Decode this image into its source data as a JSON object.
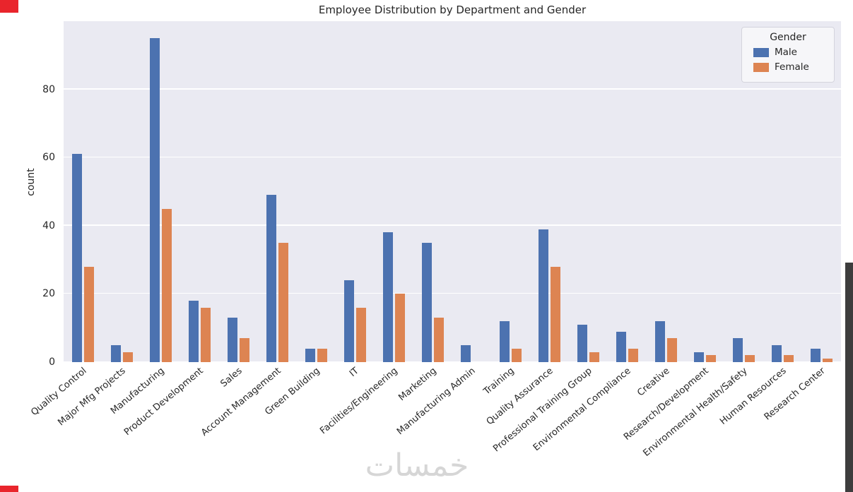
{
  "page": {
    "background": "#ffffff",
    "watermark_text": "خمسات",
    "scrollbar_color": "#3d3d3d",
    "accent_red": "#e9252c"
  },
  "chart_data": {
    "type": "bar",
    "title": "Employee Distribution by Department and Gender",
    "xlabel": "",
    "ylabel": "count",
    "ylim": [
      0,
      100
    ],
    "yticks": [
      0,
      20,
      40,
      60,
      80
    ],
    "grid": true,
    "plot_background": "#eaeaf2",
    "gridline_color": "#ffffff",
    "legend": {
      "title": "Gender",
      "position": "upper right"
    },
    "categories": [
      "Quality Control",
      "Major Mfg Projects",
      "Manufacturing",
      "Product Development",
      "Sales",
      "Account Management",
      "Green Building",
      "IT",
      "Facilities/Engineering",
      "Marketing",
      "Manufacturing Admin",
      "Training",
      "Quality Assurance",
      "Professional Training Group",
      "Environmental Compliance",
      "Creative",
      "Research/Development",
      "Environmental Health/Safety",
      "Human Resources",
      "Research Center"
    ],
    "series": [
      {
        "name": "Male",
        "color": "#4c72b0",
        "values": [
          61,
          5,
          95,
          18,
          13,
          49,
          4,
          24,
          38,
          35,
          5,
          12,
          39,
          11,
          9,
          12,
          3,
          7,
          5,
          4
        ]
      },
      {
        "name": "Female",
        "color": "#dd8452",
        "values": [
          28,
          3,
          45,
          16,
          7,
          35,
          4,
          16,
          20,
          13,
          0,
          4,
          28,
          3,
          4,
          7,
          2,
          2,
          2,
          1
        ]
      }
    ]
  }
}
